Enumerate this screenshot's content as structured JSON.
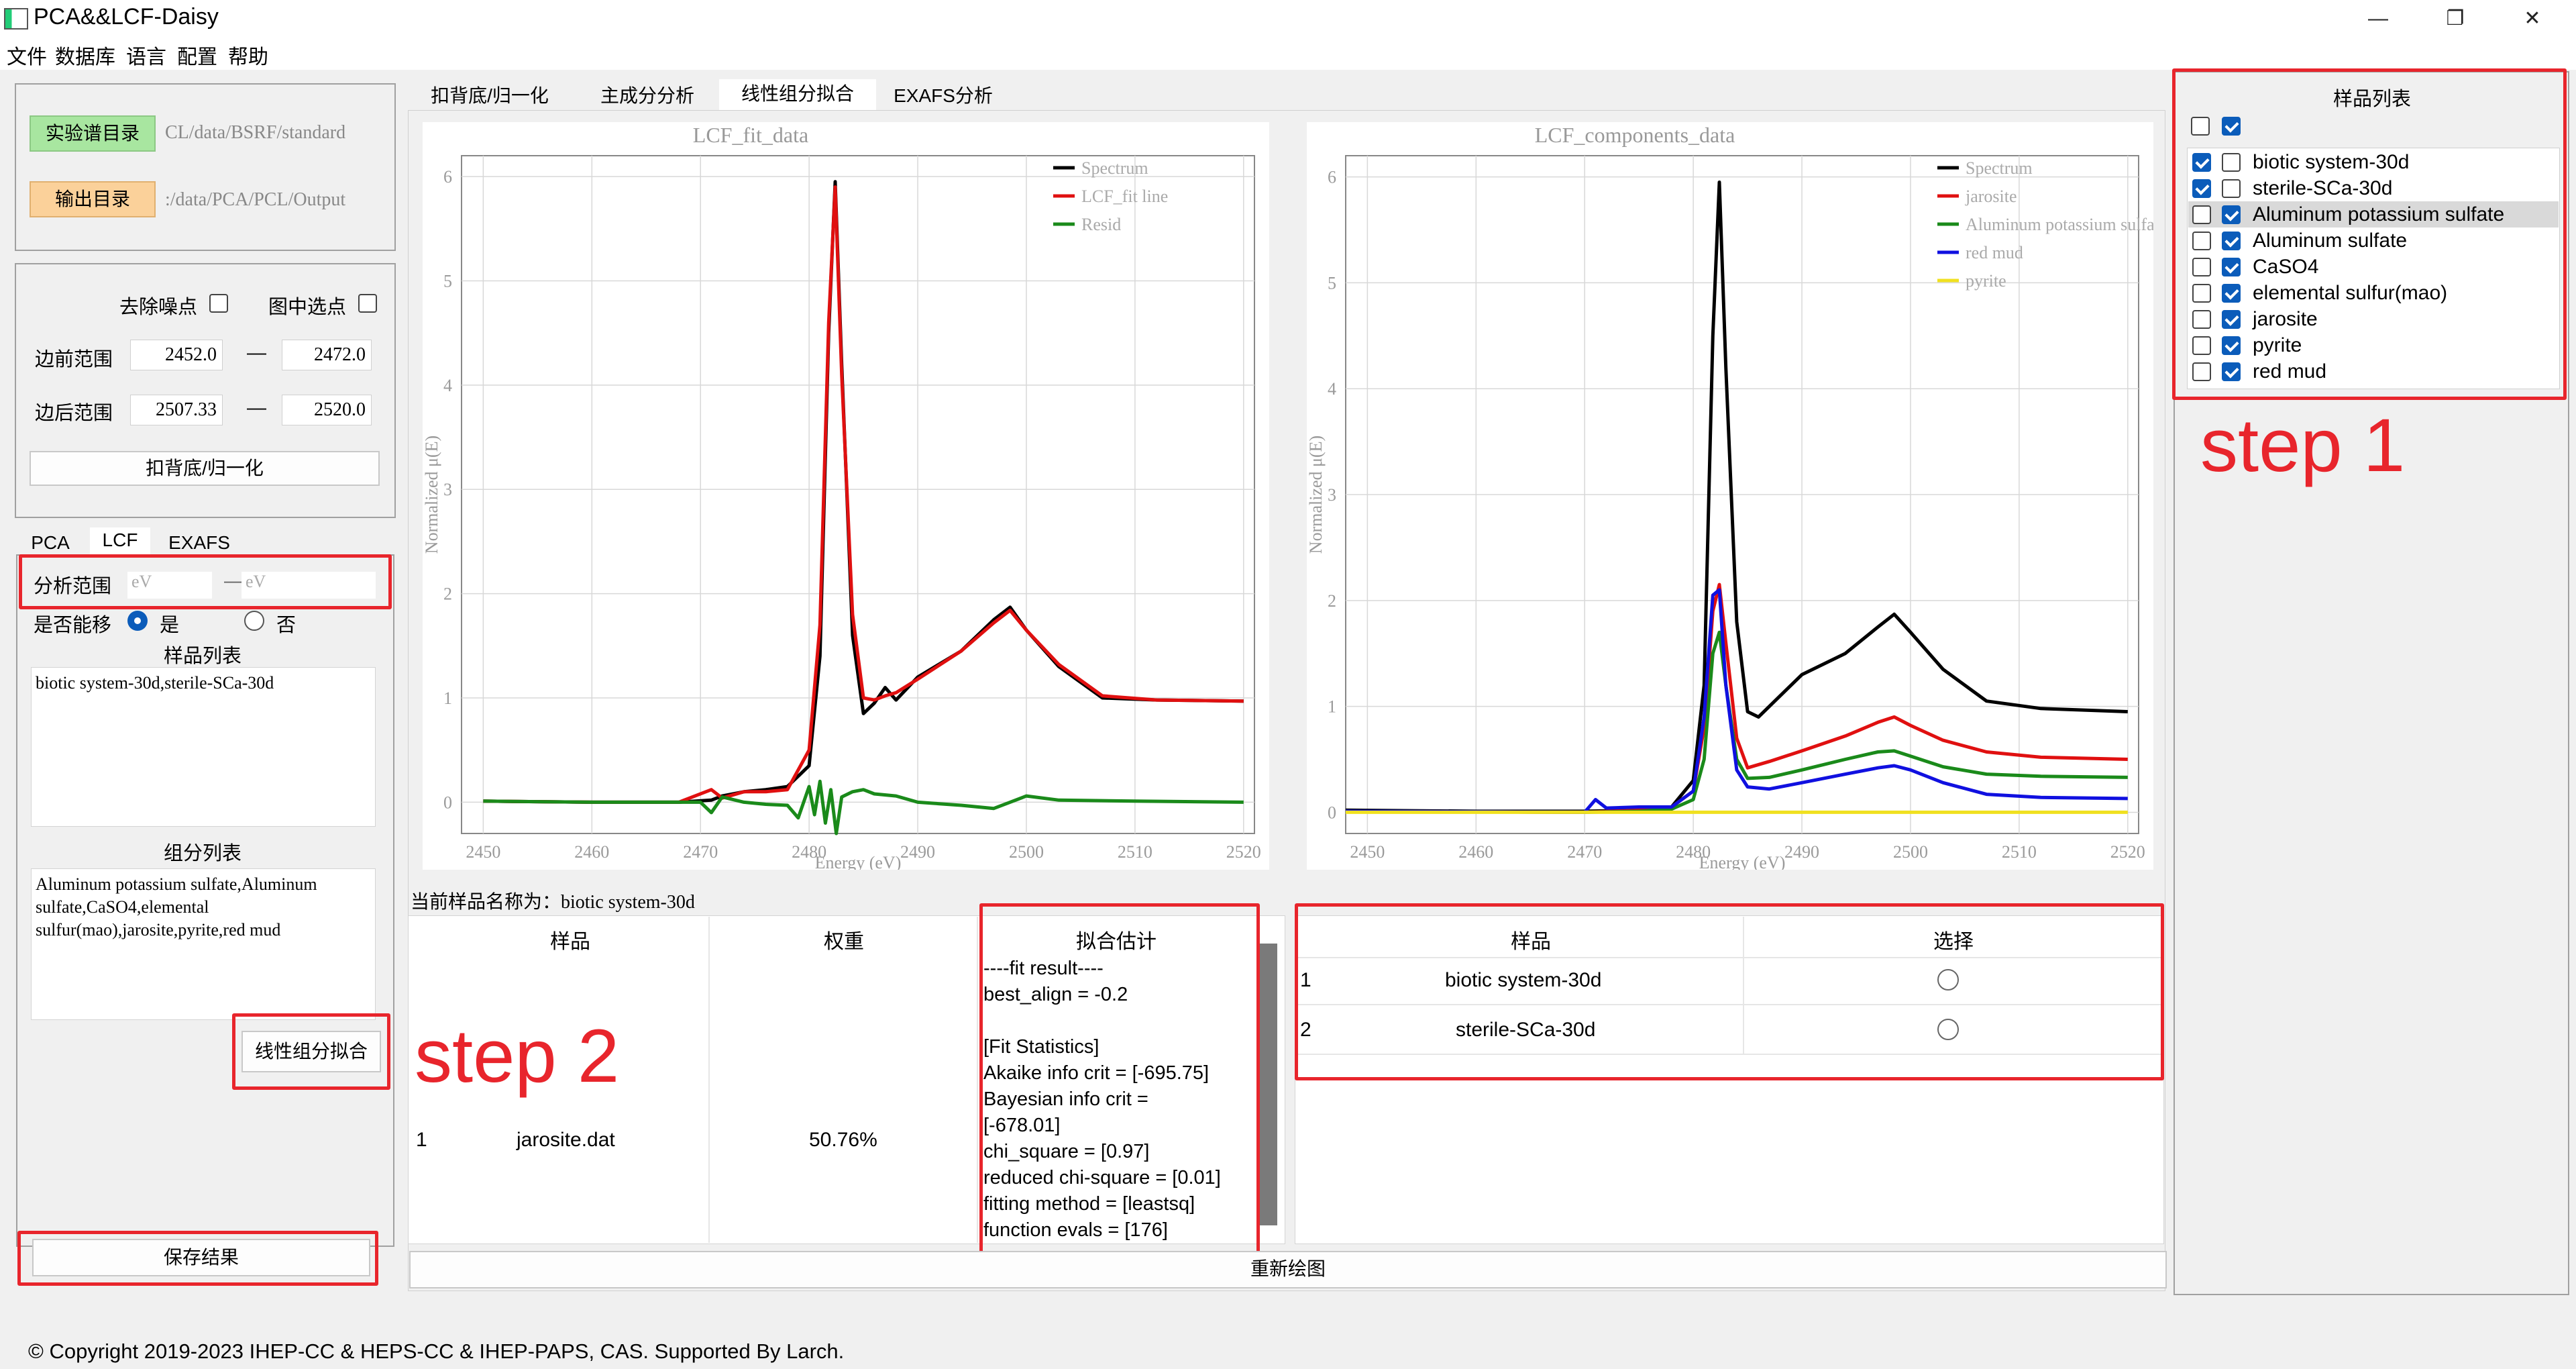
{
  "window": {
    "title": "PCA&&LCF-Daisy",
    "min": "—",
    "max": "❐",
    "close": "✕"
  },
  "menu": [
    "文件",
    "数据库",
    "语言",
    "配置",
    "帮助"
  ],
  "dirs": {
    "exp_btn": "实验谱目录",
    "exp_path": "CL/data/BSRF/standard",
    "out_btn": "输出目录",
    "out_path": ":/data/PCA/PCL/Output"
  },
  "preprocess": {
    "denoise": "去除噪点",
    "select_in_plot": "图中选点",
    "pre_edge": "边前范围",
    "pre_from": "2452.0",
    "pre_to": "2472.0",
    "post_edge": "边后范围",
    "post_from": "2507.33",
    "post_to": "2520.0",
    "dash": "—",
    "bg_btn": "扣背底/归一化"
  },
  "sidetabs": [
    "PCA",
    "LCF",
    "EXAFS"
  ],
  "lcf": {
    "range_label": "分析范围",
    "ev1": "eV",
    "dash": "—",
    "ev2": "eV",
    "shift_label": "是否能移",
    "yes": "是",
    "no": "否",
    "sample_title": "样品列表",
    "samples_text": "biotic system-30d,sterile-SCa-30d",
    "comp_title": "组分列表",
    "comp_text": "Aluminum potassium sulfate,Aluminum sulfate,CaSO4,elemental sulfur(mao),jarosite,pyrite,red mud",
    "fit_btn": "线性组分拟合",
    "save_btn": "保存结果"
  },
  "maintabs": [
    "扣背底/归一化",
    "主成分分析",
    "线性组分拟合",
    "EXAFS分析"
  ],
  "current_sample": "当前样品名称为：biotic system-30d",
  "result_table": {
    "headers": [
      "样品",
      "权重",
      "拟合估计"
    ],
    "row_index": "1",
    "row_name": "jarosite.dat",
    "row_weight": "50.76%",
    "fit_lines": [
      "----fit result----",
      "best_align = -0.2",
      "",
      "[Fit Statistics]",
      "Akaike info crit = [-695.75]",
      "Bayesian info crit =",
      "[-678.01]",
      "chi_square = [0.97]",
      "reduced chi-square = [0.01]",
      "fitting method = [leastsq]",
      "function evals = [176]"
    ]
  },
  "select_table": {
    "headers": [
      "样品",
      "选择"
    ],
    "rows": [
      {
        "idx": "1",
        "name": "biotic system-30d"
      },
      {
        "idx": "2",
        "name": "sterile-SCa-30d"
      }
    ]
  },
  "redraw_btn": "重新绘图",
  "sample_list": {
    "title": "样品列表",
    "items": [
      {
        "name": "biotic system-30d",
        "c1": true,
        "c2": false
      },
      {
        "name": "sterile-SCa-30d",
        "c1": true,
        "c2": false
      },
      {
        "name": "Aluminum potassium sulfate",
        "c1": false,
        "c2": true
      },
      {
        "name": "Aluminum sulfate",
        "c1": false,
        "c2": true
      },
      {
        "name": "CaSO4",
        "c1": false,
        "c2": true
      },
      {
        "name": "elemental sulfur(mao)",
        "c1": false,
        "c2": true
      },
      {
        "name": "jarosite",
        "c1": false,
        "c2": true
      },
      {
        "name": "pyrite",
        "c1": false,
        "c2": true
      },
      {
        "name": "red mud",
        "c1": false,
        "c2": true
      }
    ]
  },
  "annotations": {
    "step1": "step 1",
    "step2": "step 2"
  },
  "copyright": "© Copyright 2019-2023 IHEP-CC & HEPS-CC & IHEP-PAPS, CAS. Supported By Larch.",
  "chart_data": [
    {
      "type": "line",
      "title": "LCF_fit_data",
      "xlabel": "Energy (eV)",
      "ylabel": "Normalized μ(E)",
      "xlim": [
        2448,
        2521
      ],
      "ylim": [
        -0.3,
        6.2
      ],
      "xticks": [
        2450,
        2460,
        2470,
        2480,
        2490,
        2500,
        2510,
        2520
      ],
      "yticks": [
        0,
        1,
        2,
        3,
        4,
        5,
        6
      ],
      "grid": true,
      "legend": "top-right",
      "series": [
        {
          "name": "Spectrum",
          "color": "#000000",
          "x": [
            2450,
            2460,
            2468,
            2471,
            2472,
            2474,
            2476,
            2478,
            2480,
            2481,
            2481.8,
            2482.4,
            2483,
            2484,
            2485,
            2486,
            2487,
            2488,
            2490,
            2494,
            2497,
            2498.5,
            2500,
            2503,
            2507,
            2512,
            2520
          ],
          "y": [
            0.01,
            0.0,
            0.0,
            0.02,
            0.06,
            0.1,
            0.12,
            0.15,
            0.35,
            1.4,
            4.5,
            5.95,
            4.2,
            1.6,
            0.85,
            0.95,
            1.1,
            0.98,
            1.2,
            1.45,
            1.75,
            1.87,
            1.65,
            1.3,
            1.0,
            0.98,
            0.97
          ]
        },
        {
          "name": "LCF_fit line",
          "color": "#e01010",
          "x": [
            2450,
            2460,
            2468,
            2471,
            2472,
            2474,
            2476,
            2478,
            2480,
            2481,
            2481.8,
            2482.4,
            2483,
            2484,
            2485,
            2486,
            2487,
            2488,
            2490,
            2494,
            2497,
            2498.5,
            2500,
            2503,
            2507,
            2512,
            2520
          ],
          "y": [
            0.01,
            0.0,
            0.0,
            0.12,
            0.04,
            0.1,
            0.1,
            0.12,
            0.5,
            1.7,
            4.6,
            5.9,
            4.1,
            1.8,
            1.0,
            0.98,
            1.02,
            1.05,
            1.18,
            1.45,
            1.72,
            1.84,
            1.65,
            1.32,
            1.02,
            0.98,
            0.97
          ]
        },
        {
          "name": "Resid",
          "color": "#1a8a1a",
          "x": [
            2450,
            2460,
            2470,
            2471,
            2472,
            2474,
            2476,
            2478,
            2479,
            2480,
            2480.5,
            2481,
            2481.5,
            2482,
            2482.5,
            2483,
            2484,
            2485,
            2486,
            2488,
            2490,
            2494,
            2497,
            2498.5,
            2500,
            2503,
            2510,
            2520
          ],
          "y": [
            0.01,
            0.0,
            0.0,
            -0.1,
            0.05,
            0.0,
            -0.02,
            -0.03,
            -0.15,
            0.15,
            -0.12,
            0.2,
            -0.2,
            0.12,
            -0.3,
            0.05,
            0.1,
            0.12,
            0.08,
            0.06,
            0.0,
            -0.03,
            -0.06,
            0.0,
            0.06,
            0.02,
            0.01,
            0.0
          ]
        }
      ]
    },
    {
      "type": "line",
      "title": "LCF_components_data",
      "xlabel": "Energy (eV)",
      "ylabel": "Normalized μ(E)",
      "xlim": [
        2448,
        2521
      ],
      "ylim": [
        -0.2,
        6.2
      ],
      "xticks": [
        2450,
        2460,
        2470,
        2480,
        2490,
        2500,
        2510,
        2520
      ],
      "yticks": [
        0,
        1,
        2,
        3,
        4,
        5,
        6
      ],
      "grid": true,
      "legend": "top-right",
      "series": [
        {
          "name": "Spectrum",
          "color": "#000000",
          "x": [
            2448,
            2460,
            2470,
            2475,
            2478,
            2480,
            2481,
            2481.8,
            2482.4,
            2483,
            2484,
            2485,
            2486,
            2488,
            2490,
            2494,
            2497,
            2498.5,
            2500,
            2503,
            2507,
            2512,
            2520
          ],
          "y": [
            0.02,
            0.01,
            0.01,
            0.02,
            0.05,
            0.3,
            1.2,
            4.5,
            5.95,
            4.2,
            1.8,
            0.95,
            0.9,
            1.1,
            1.3,
            1.5,
            1.75,
            1.87,
            1.7,
            1.35,
            1.05,
            0.98,
            0.95
          ]
        },
        {
          "name": "jarosite",
          "color": "#e01010",
          "x": [
            2448,
            2470,
            2475,
            2478,
            2480,
            2481,
            2481.8,
            2482.4,
            2483,
            2484,
            2485,
            2487,
            2490,
            2494,
            2497,
            2498.5,
            2500,
            2503,
            2507,
            2512,
            2520
          ],
          "y": [
            0.01,
            0.0,
            0.02,
            0.05,
            0.2,
            0.8,
            1.9,
            2.15,
            1.6,
            0.7,
            0.42,
            0.48,
            0.58,
            0.72,
            0.85,
            0.9,
            0.82,
            0.68,
            0.57,
            0.52,
            0.5
          ]
        },
        {
          "name": "Aluminum potassium sulfate",
          "color": "#1a8a1a",
          "x": [
            2448,
            2470,
            2475,
            2478,
            2480,
            2481,
            2481.8,
            2482.4,
            2483,
            2484,
            2485,
            2487,
            2490,
            2494,
            2497,
            2498.5,
            2500,
            2503,
            2507,
            2512,
            2520
          ],
          "y": [
            0.01,
            0.0,
            0.01,
            0.03,
            0.12,
            0.5,
            1.5,
            1.7,
            1.2,
            0.5,
            0.32,
            0.33,
            0.4,
            0.5,
            0.57,
            0.58,
            0.53,
            0.43,
            0.36,
            0.34,
            0.33
          ]
        },
        {
          "name": "red mud",
          "color": "#1010e0",
          "x": [
            2448,
            2470,
            2471,
            2472,
            2475,
            2478,
            2480,
            2481,
            2481.8,
            2482.4,
            2483,
            2484,
            2485,
            2487,
            2490,
            2494,
            2497,
            2498.5,
            2500,
            2503,
            2507,
            2512,
            2520
          ],
          "y": [
            0.01,
            0.0,
            0.12,
            0.04,
            0.05,
            0.05,
            0.2,
            0.9,
            2.05,
            2.1,
            1.2,
            0.4,
            0.24,
            0.22,
            0.28,
            0.36,
            0.42,
            0.44,
            0.4,
            0.28,
            0.17,
            0.14,
            0.13
          ]
        },
        {
          "name": "pyrite",
          "color": "#f0e020",
          "x": [
            2448,
            2520
          ],
          "y": [
            0.0,
            0.0
          ]
        }
      ]
    }
  ]
}
